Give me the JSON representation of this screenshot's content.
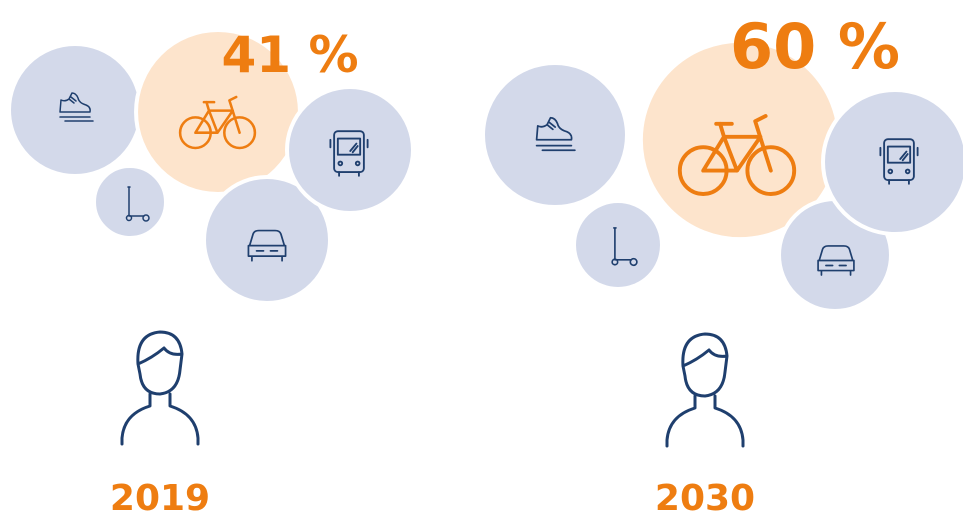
{
  "panels": [
    {
      "year": "2019",
      "bike_share": 41,
      "bike_share_label": "41 %"
    },
    {
      "year": "2030",
      "bike_share": 60,
      "bike_share_label": "60 %"
    }
  ]
}
